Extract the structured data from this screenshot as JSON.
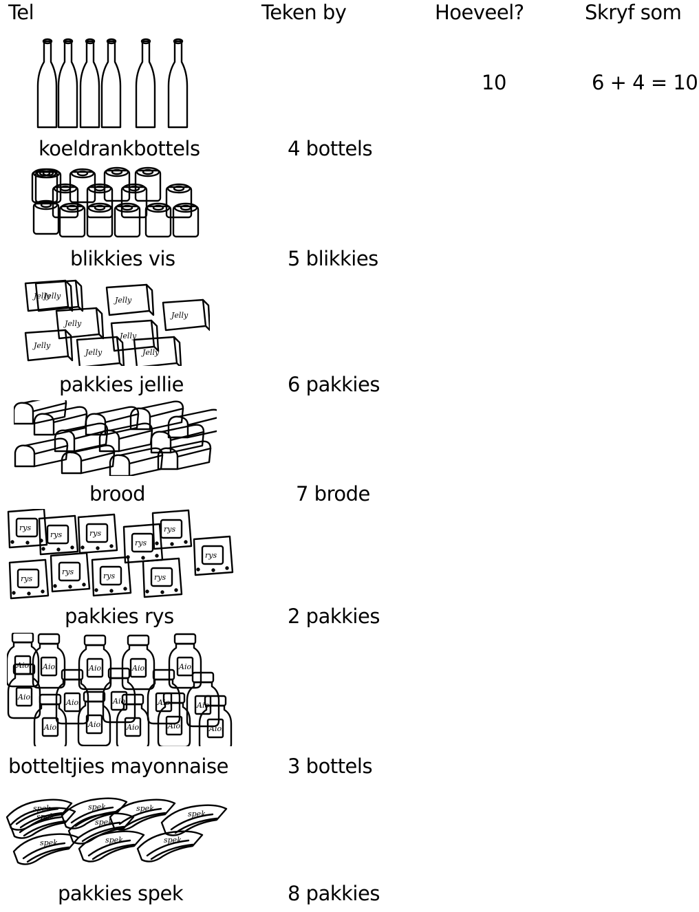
{
  "headers": {
    "count": "Tel",
    "draw": "Teken by",
    "how_many": "Hoeveel?",
    "write_sum": "Skryf som"
  },
  "example": {
    "how_many": "10",
    "sum": "6 + 4 = 10"
  },
  "rows": [
    {
      "item": "koeldrankbottels",
      "add": "4 bottels",
      "icon": "bottles-icon"
    },
    {
      "item": "blikkies vis",
      "add": "5 blikkies",
      "icon": "fish-tins-icon"
    },
    {
      "item": "pakkies jellie",
      "add": "6 pakkies",
      "icon": "jelly-packets-icon"
    },
    {
      "item": "brood",
      "add": "7 brode",
      "icon": "bread-loaves-icon"
    },
    {
      "item": "pakkies rys",
      "add": "2 pakkies",
      "icon": "rice-packets-icon"
    },
    {
      "item": "botteltjies mayonnaise",
      "add": "3 bottels",
      "icon": "mayonnaise-jars-icon"
    },
    {
      "item": "pakkies spek",
      "add": "8 pakkies",
      "icon": "bacon-packets-icon"
    }
  ],
  "illustration_labels": {
    "jelly": "Jelly",
    "rice": "rys",
    "mayo": "Aiol",
    "bacon": "spek"
  }
}
